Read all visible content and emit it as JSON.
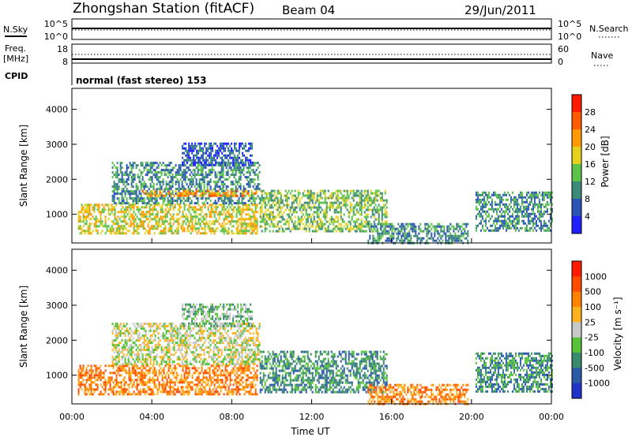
{
  "header": {
    "station": "Zhongshan Station (fitACF)",
    "beam": "Beam 04",
    "date": "29/Jun/2011"
  },
  "nsky": {
    "label": "N.Sky",
    "ticks": [
      "10^5",
      "10^0"
    ],
    "right_label": "N.Search",
    "right_ticks": [
      "10^5",
      "10^0"
    ]
  },
  "freq": {
    "label_top": "Freq.",
    "label_unit": "[MHz]",
    "ticks": [
      "18",
      "8"
    ],
    "right_label": "Nave",
    "right_ticks": [
      "60",
      "0"
    ]
  },
  "cpid": {
    "label": "CPID",
    "text": "normal (fast stereo) 153"
  },
  "chart_data": [
    {
      "type": "heatmap",
      "name": "power",
      "ylabel": "Slant Range [km]",
      "ylim": [
        180,
        4600
      ],
      "yticks": [
        "4000",
        "3000",
        "2000",
        "1000"
      ],
      "colorbar_label": "Power [dB]",
      "colorbar_ticks": [
        "28",
        "24",
        "20",
        "16",
        "12",
        "8",
        "4"
      ],
      "colors": [
        "#1f1fff",
        "#2a55b4",
        "#3c8a78",
        "#5cc24a",
        "#e6d21e",
        "#ff9a00",
        "#ff5a00",
        "#ff1a00"
      ],
      "echo_regions": [
        {
          "t0": 0.3,
          "t1": 9.3,
          "r0": 450,
          "r1": 1300,
          "level": 4
        },
        {
          "t0": 2.0,
          "t1": 9.4,
          "r0": 1300,
          "r1": 2500,
          "level": 2
        },
        {
          "t0": 3.5,
          "t1": 9.2,
          "r0": 1500,
          "r1": 1700,
          "level": 5
        },
        {
          "t0": 5.5,
          "t1": 9.0,
          "r0": 2400,
          "r1": 3050,
          "level": 1
        },
        {
          "t0": 9.4,
          "t1": 15.8,
          "r0": 500,
          "r1": 1700,
          "level": 3
        },
        {
          "t0": 14.8,
          "t1": 19.8,
          "r0": 200,
          "r1": 750,
          "level": 2
        },
        {
          "t0": 20.2,
          "t1": 24.0,
          "r0": 500,
          "r1": 1650,
          "level": 2
        }
      ]
    },
    {
      "type": "heatmap",
      "name": "velocity",
      "xlabel": "Time UT",
      "xticks": [
        "00:00",
        "04:00",
        "08:00",
        "12:00",
        "16:00",
        "20:00",
        "00:00"
      ],
      "xlim": [
        0,
        24
      ],
      "ylabel": "Slant Range [km]",
      "ylim": [
        180,
        4600
      ],
      "yticks": [
        "4000",
        "3000",
        "2000",
        "1000"
      ],
      "colorbar_label": "Velocity [m s⁻¹]",
      "colorbar_ticks": [
        "1000",
        "500",
        "100",
        "25",
        "-25",
        "-100",
        "-500",
        "-1000"
      ],
      "colors": [
        "#2233cc",
        "#2a5aa8",
        "#3a8a6e",
        "#55c23a",
        "#c8c8c8",
        "#ffb21a",
        "#ff8200",
        "#ff4a00",
        "#ff1a00"
      ],
      "echo_regions": [
        {
          "t0": 0.3,
          "t1": 9.3,
          "r0": 450,
          "r1": 1300,
          "level": 6
        },
        {
          "t0": 2.0,
          "t1": 9.4,
          "r0": 1300,
          "r1": 2500,
          "level": 4
        },
        {
          "t0": 5.5,
          "t1": 9.0,
          "r0": 2400,
          "r1": 3050,
          "level": 3
        },
        {
          "t0": 9.4,
          "t1": 15.8,
          "r0": 500,
          "r1": 1700,
          "level": 2
        },
        {
          "t0": 14.8,
          "t1": 19.8,
          "r0": 200,
          "r1": 750,
          "level": 6
        },
        {
          "t0": 20.2,
          "t1": 24.0,
          "r0": 500,
          "r1": 1650,
          "level": 2
        }
      ]
    }
  ]
}
